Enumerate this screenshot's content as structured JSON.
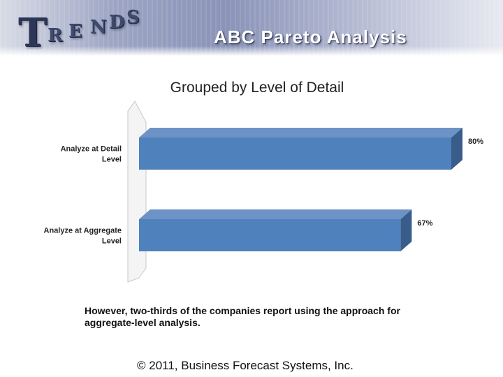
{
  "header": {
    "logo_text": "TRENDS",
    "logo_letters": [
      "T",
      "R",
      "E",
      "N",
      "D",
      "S"
    ],
    "title": "ABC Pareto Analysis"
  },
  "chart_data": {
    "type": "bar",
    "orientation": "horizontal",
    "title": "Grouped by Level of Detail",
    "categories": [
      "Analyze at Detail Level",
      "Analyze at Aggregate Level"
    ],
    "values": [
      80,
      67
    ],
    "data_labels": [
      "80%",
      "67%"
    ],
    "xlim": [
      0,
      80
    ],
    "grid": false,
    "legend": "none",
    "bar_color": "#4f81bd",
    "bar_side_color": "#385d8a",
    "bar_top_color": "#6d93c6",
    "style": "3d"
  },
  "note": "However, two-thirds of the companies report using the approach for aggregate-level analysis.",
  "footer": {
    "copyright": "© 2011, Business Forecast Systems, Inc."
  }
}
